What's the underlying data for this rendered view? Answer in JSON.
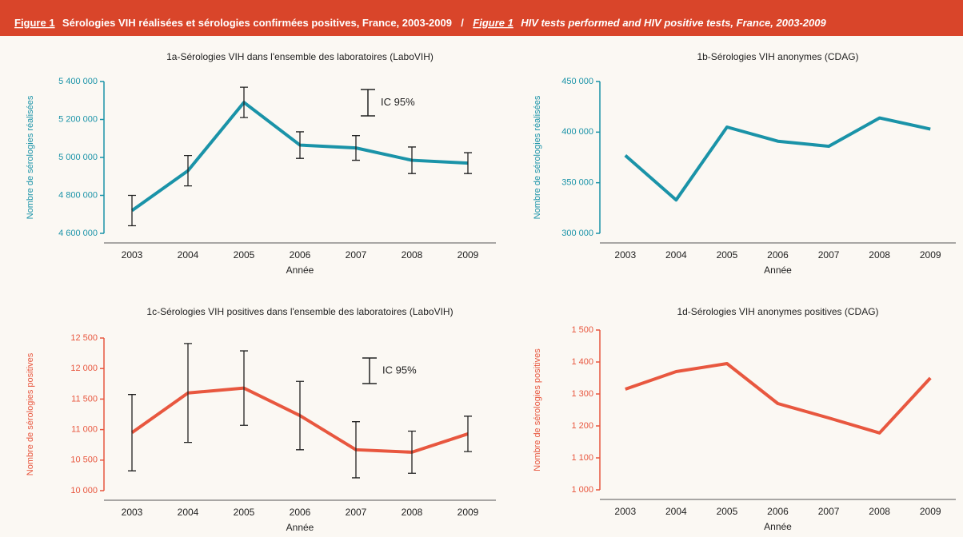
{
  "header": {
    "figure_fr": "Figure 1",
    "title_fr": "Sérologies VIH réalisées et sérologies confirmées positives, France, 2003-2009",
    "separator": "/",
    "figure_en": "Figure 1",
    "title_en": "HIV tests performed and HIV positive tests, France, 2003-2009"
  },
  "chart_data": [
    {
      "type": "line",
      "title": "1a-Sérologies VIH dans l'ensemble des laboratoires (LaboVIH)",
      "x_label": "Année",
      "y_label": "Nombre de sérologies réalisées",
      "legend_label": "IC 95%",
      "color": "#1a93a8",
      "categories": [
        "2003",
        "2004",
        "2005",
        "2006",
        "2007",
        "2008",
        "2009"
      ],
      "values": [
        4720000,
        4930000,
        5290000,
        5065000,
        5050000,
        4985000,
        4970000
      ],
      "errors": [
        80000,
        80000,
        80000,
        70000,
        65000,
        70000,
        55000
      ],
      "ylim": [
        4600000,
        5400000
      ],
      "yticks": [
        {
          "value": 4600000,
          "label": "4 600 000"
        },
        {
          "value": 4800000,
          "label": "4 800 000"
        },
        {
          "value": 5000000,
          "label": "5 000 000"
        },
        {
          "value": 5200000,
          "label": "5 200 000"
        },
        {
          "value": 5400000,
          "label": "5 400 000"
        }
      ]
    },
    {
      "type": "line",
      "title": "1b-Sérologies VIH anonymes (CDAG)",
      "x_label": "Année",
      "y_label": "Nombre de sérologies réalisées",
      "color": "#1a93a8",
      "categories": [
        "2003",
        "2004",
        "2005",
        "2006",
        "2007",
        "2008",
        "2009"
      ],
      "values": [
        377000,
        333000,
        405000,
        391000,
        386000,
        414000,
        403000
      ],
      "ylim": [
        300000,
        450000
      ],
      "yticks": [
        {
          "value": 300000,
          "label": "300 000"
        },
        {
          "value": 350000,
          "label": "350 000"
        },
        {
          "value": 400000,
          "label": "400 000"
        },
        {
          "value": 450000,
          "label": "450 000"
        }
      ]
    },
    {
      "type": "line",
      "title": "1c-Sérologies VIH positives dans l'ensemble des laboratoires (LaboVIH)",
      "x_label": "Année",
      "y_label": "Nombre de sérologies positives",
      "legend_label": "IC 95%",
      "color": "#e8573f",
      "categories": [
        "2003",
        "2004",
        "2005",
        "2006",
        "2007",
        "2008",
        "2009"
      ],
      "values": [
        10950,
        11600,
        11680,
        11230,
        10670,
        10630,
        10930
      ],
      "errors": [
        625,
        810,
        610,
        560,
        460,
        345,
        290
      ],
      "ylim": [
        10000,
        12500
      ],
      "yticks": [
        {
          "value": 10000,
          "label": "10 000"
        },
        {
          "value": 10500,
          "label": "10 500"
        },
        {
          "value": 11000,
          "label": "11 000"
        },
        {
          "value": 11500,
          "label": "11 500"
        },
        {
          "value": 12000,
          "label": "12 000"
        },
        {
          "value": 12500,
          "label": "12 500"
        }
      ]
    },
    {
      "type": "line",
      "title": "1d-Sérologies VIH anonymes positives (CDAG)",
      "x_label": "Année",
      "y_label": "Nombre de sérologies positives",
      "color": "#e8573f",
      "categories": [
        "2003",
        "2004",
        "2005",
        "2006",
        "2007",
        "2008",
        "2009"
      ],
      "values": [
        1315,
        1370,
        1395,
        1270,
        1225,
        1178,
        1350
      ],
      "ylim": [
        1000,
        1500
      ],
      "yticks": [
        {
          "value": 1000,
          "label": "1 000"
        },
        {
          "value": 1100,
          "label": "1 100"
        },
        {
          "value": 1200,
          "label": "1 200"
        },
        {
          "value": 1300,
          "label": "1 300"
        },
        {
          "value": 1400,
          "label": "1 400"
        },
        {
          "value": 1500,
          "label": "1 500"
        }
      ]
    }
  ]
}
